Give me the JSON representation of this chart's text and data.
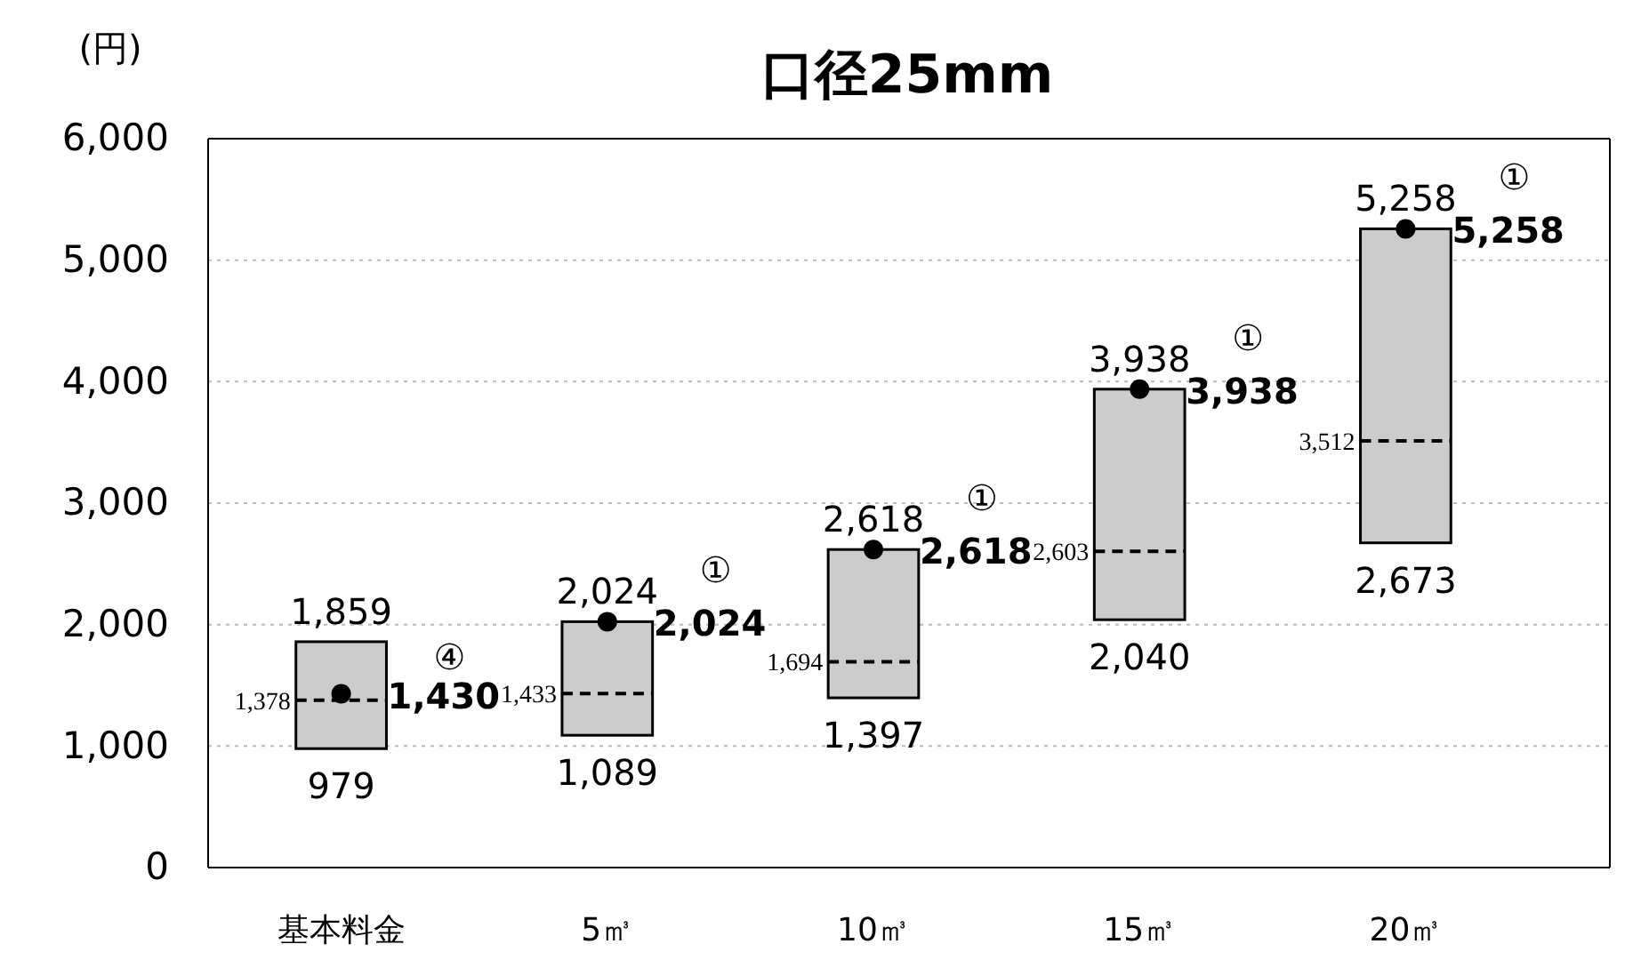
{
  "chart_data": {
    "type": "box",
    "title": "口径25mm",
    "ylabel": "(円)",
    "categories": [
      "基本料金",
      "5㎥",
      "10㎥",
      "15㎥",
      "20㎥"
    ],
    "boxes": [
      {
        "low": 979,
        "q1": 979,
        "median": 1378,
        "q3": 1859,
        "high": 1859
      },
      {
        "low": 1089,
        "q1": 1089,
        "median": 1433,
        "q3": 2024,
        "high": 2024
      },
      {
        "low": 1397,
        "q1": 1397,
        "median": 1694,
        "q3": 2618,
        "high": 2618
      },
      {
        "low": 2040,
        "q1": 2040,
        "median": 2603,
        "q3": 3938,
        "high": 3938
      },
      {
        "low": 2673,
        "q1": 2673,
        "median": 3512,
        "q3": 5258,
        "high": 5258
      }
    ],
    "color": "#cccccc",
    "series": [
      {
        "type": "scatter",
        "color": "#000000",
        "marker": "circle",
        "values": [
          1430,
          2024,
          2618,
          3938,
          5258
        ],
        "value_labels": [
          "1,430",
          "2,024",
          "2,618",
          "3,938",
          "5,258"
        ]
      }
    ],
    "annotations": [
      {
        "text": "1,859",
        "x": "基本料金",
        "y": 1859
      },
      {
        "text": "979",
        "x": "基本料金",
        "y": 979
      },
      {
        "text": "1,378",
        "x": "基本料金",
        "y": 1378
      },
      {
        "text": "2,024",
        "x": "5㎥",
        "y": 2024
      },
      {
        "text": "1,089",
        "x": "5㎥",
        "y": 1089
      },
      {
        "text": "1,433",
        "x": "5㎥",
        "y": 1433
      },
      {
        "text": "2,618",
        "x": "10㎥",
        "y": 2618
      },
      {
        "text": "1,397",
        "x": "10㎥",
        "y": 1397
      },
      {
        "text": "1,694",
        "x": "10㎥",
        "y": 1694
      },
      {
        "text": "3,938",
        "x": "15㎥",
        "y": 3938
      },
      {
        "text": "2,040",
        "x": "15㎥",
        "y": 2040
      },
      {
        "text": "2,603",
        "x": "15㎥",
        "y": 2603
      },
      {
        "text": "5,258",
        "x": "20㎥",
        "y": 5258
      },
      {
        "text": "2,673",
        "x": "20㎥",
        "y": 2673
      },
      {
        "text": "3,512",
        "x": "20㎥",
        "y": 3512
      },
      {
        "text": "④",
        "x": "基本料金",
        "y": 1430
      },
      {
        "text": "①",
        "x": "5㎥",
        "y": 2024
      },
      {
        "text": "①",
        "x": "10㎥",
        "y": 2618
      },
      {
        "text": "①",
        "x": "15㎥",
        "y": 3938
      },
      {
        "text": "①",
        "x": "20㎥",
        "y": 5258
      }
    ],
    "ylim": [
      0,
      6000
    ],
    "yticks": [
      {
        "value": 0,
        "label": "0"
      },
      {
        "value": 1000,
        "label": "1,000"
      },
      {
        "value": 2000,
        "label": "2,000"
      },
      {
        "value": 3000,
        "label": "3,000"
      },
      {
        "value": 4000,
        "label": "4,000"
      },
      {
        "value": 5000,
        "label": "5,000"
      },
      {
        "value": 6000,
        "label": "6,000"
      }
    ],
    "grid": "y"
  }
}
